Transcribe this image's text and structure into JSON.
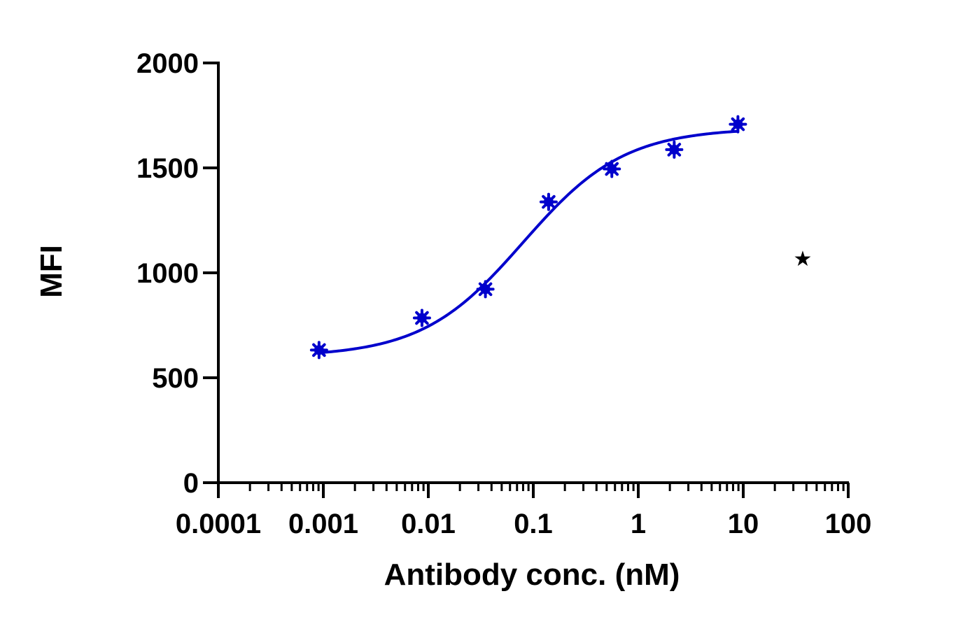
{
  "chart_data": {
    "type": "scatter",
    "x_scale": "log",
    "xlim": [
      0.0001,
      100
    ],
    "ylim": [
      0,
      2000
    ],
    "xlabel": "Antibody conc. (nM)",
    "ylabel": "MFI",
    "x_ticks": [
      "0.0001",
      "0.001",
      "0.01",
      "0.1",
      "1",
      "10",
      "100"
    ],
    "y_ticks": [
      "0",
      "500",
      "1000",
      "1500",
      "2000"
    ],
    "grid": false,
    "legend_symbol": "★",
    "series": [
      {
        "color": "#0000cc",
        "marker": "asterisk",
        "x": [
          0.00091,
          0.0087,
          0.035,
          0.14,
          0.56,
          2.2,
          8.9
        ],
        "y": [
          632,
          785,
          922,
          1338,
          1495,
          1587,
          1708
        ]
      }
    ],
    "fit": {
      "type": "4PL",
      "color": "#0000cc",
      "bottom": 600,
      "top": 1690,
      "ec50": 0.08,
      "hill": 0.9,
      "x_range": [
        0.00091,
        8.9
      ]
    }
  }
}
